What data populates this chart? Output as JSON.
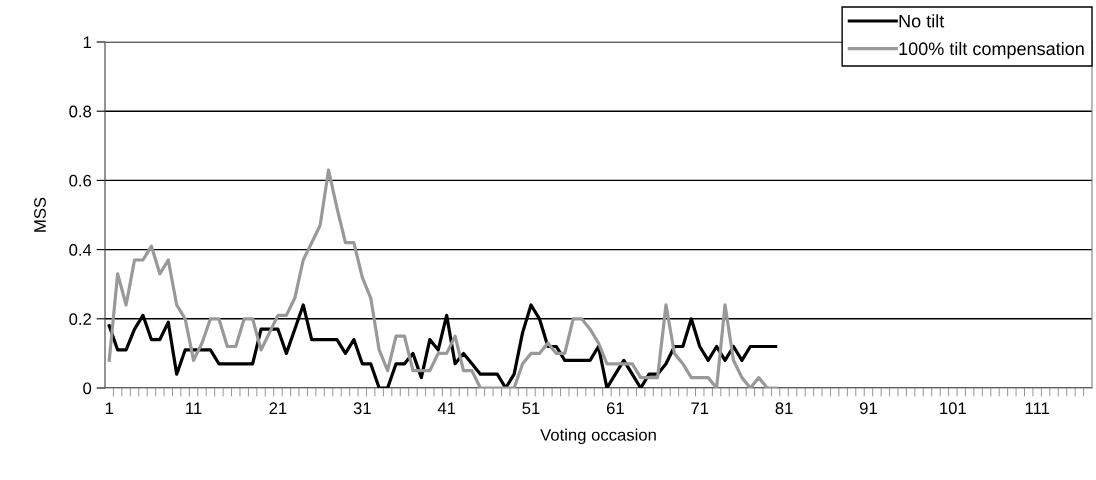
{
  "chart_data": {
    "type": "line",
    "xlabel": "Voting occasion",
    "ylabel": "MSS",
    "categories": [
      "1",
      null,
      null,
      null,
      null,
      null,
      null,
      null,
      null,
      null,
      "11",
      null,
      null,
      null,
      null,
      null,
      null,
      null,
      null,
      null,
      "21",
      null,
      null,
      null,
      null,
      null,
      null,
      null,
      null,
      null,
      "31",
      null,
      null,
      null,
      null,
      null,
      null,
      null,
      null,
      null,
      "41",
      null,
      null,
      null,
      null,
      null,
      null,
      null,
      null,
      null,
      "51",
      null,
      null,
      null,
      null,
      null,
      null,
      null,
      null,
      null,
      "61",
      null,
      null,
      null,
      null,
      null,
      null,
      null,
      null,
      null,
      "71",
      null,
      null,
      null,
      null,
      null,
      null,
      null,
      null,
      null,
      "81",
      null,
      null,
      null,
      null,
      null,
      null,
      null,
      null,
      null,
      "91",
      null,
      null,
      null,
      null,
      null,
      null,
      null,
      null,
      null,
      "101",
      null,
      null,
      null,
      null,
      null,
      null,
      null,
      null,
      null,
      "111",
      null,
      null,
      null,
      null,
      null,
      null
    ],
    "series": [
      {
        "name": "No tilt",
        "color": "#000000",
        "values": [
          0.18,
          0.11,
          0.11,
          0.17,
          0.21,
          0.14,
          0.14,
          0.19,
          0.04,
          0.11,
          0.11,
          0.11,
          0.11,
          0.07,
          0.07,
          0.07,
          0.07,
          0.07,
          0.17,
          0.17,
          0.17,
          0.1,
          0.17,
          0.24,
          0.14,
          0.14,
          0.14,
          0.14,
          0.1,
          0.14,
          0.07,
          0.07,
          0,
          0,
          0.07,
          0.07,
          0.1,
          0.03,
          0.14,
          0.11,
          0.21,
          0.07,
          0.1,
          0.07,
          0.04,
          0.04,
          0.04,
          0,
          0.04,
          0.16,
          0.24,
          0.2,
          0.12,
          0.12,
          0.08,
          0.08,
          0.08,
          0.08,
          0.12,
          0,
          0.04,
          0.08,
          0.04,
          0,
          0.04,
          0.04,
          0.07,
          0.12,
          0.12,
          0.2,
          0.12,
          0.08,
          0.12,
          0.08,
          0.12,
          0.08,
          0.12,
          0.12,
          0.12,
          0.12,
          null,
          null,
          null,
          null,
          null,
          null,
          null,
          null,
          null,
          null,
          null,
          null,
          null,
          null,
          null,
          null,
          null,
          null,
          null,
          null,
          null,
          null,
          null,
          null,
          null,
          null,
          null,
          null,
          null,
          null,
          null,
          null,
          null,
          null,
          null,
          null,
          null
        ]
      },
      {
        "name": "100% tilt compensation",
        "color": "#999999",
        "values": [
          0.08,
          0.33,
          0.24,
          0.37,
          0.37,
          0.41,
          0.33,
          0.37,
          0.24,
          0.2,
          0.08,
          0.13,
          0.2,
          0.2,
          0.12,
          0.12,
          0.2,
          0.2,
          0.11,
          0.16,
          0.21,
          0.21,
          0.26,
          0.37,
          0.42,
          0.47,
          0.63,
          0.52,
          0.42,
          0.42,
          0.32,
          0.26,
          0.11,
          0.05,
          0.15,
          0.15,
          0.05,
          0.05,
          0.05,
          0.1,
          0.1,
          0.15,
          0.05,
          0.05,
          0,
          0,
          0,
          0,
          0,
          0.07,
          0.1,
          0.1,
          0.13,
          0.1,
          0.1,
          0.2,
          0.2,
          0.17,
          0.13,
          0.07,
          0.07,
          0.07,
          0.07,
          0.03,
          0.03,
          0.03,
          0.24,
          0.1,
          0.07,
          0.03,
          0.03,
          0.03,
          0,
          0.24,
          0.08,
          0.03,
          0,
          0.03,
          0,
          0,
          null,
          null,
          null,
          null,
          null,
          null,
          null,
          null,
          null,
          null,
          null,
          null,
          null,
          null,
          null,
          null,
          null,
          null,
          null,
          null,
          null,
          null,
          null,
          null,
          null,
          null,
          null,
          null,
          null,
          null,
          null,
          null,
          null,
          null,
          null,
          null,
          null
        ]
      }
    ],
    "ylim": [
      0,
      1
    ],
    "yticks": [
      0,
      0.2,
      0.4,
      0.6,
      0.8,
      1
    ],
    "grid": "y",
    "legend": "top right",
    "marker": "none",
    "line_style": "solid"
  }
}
